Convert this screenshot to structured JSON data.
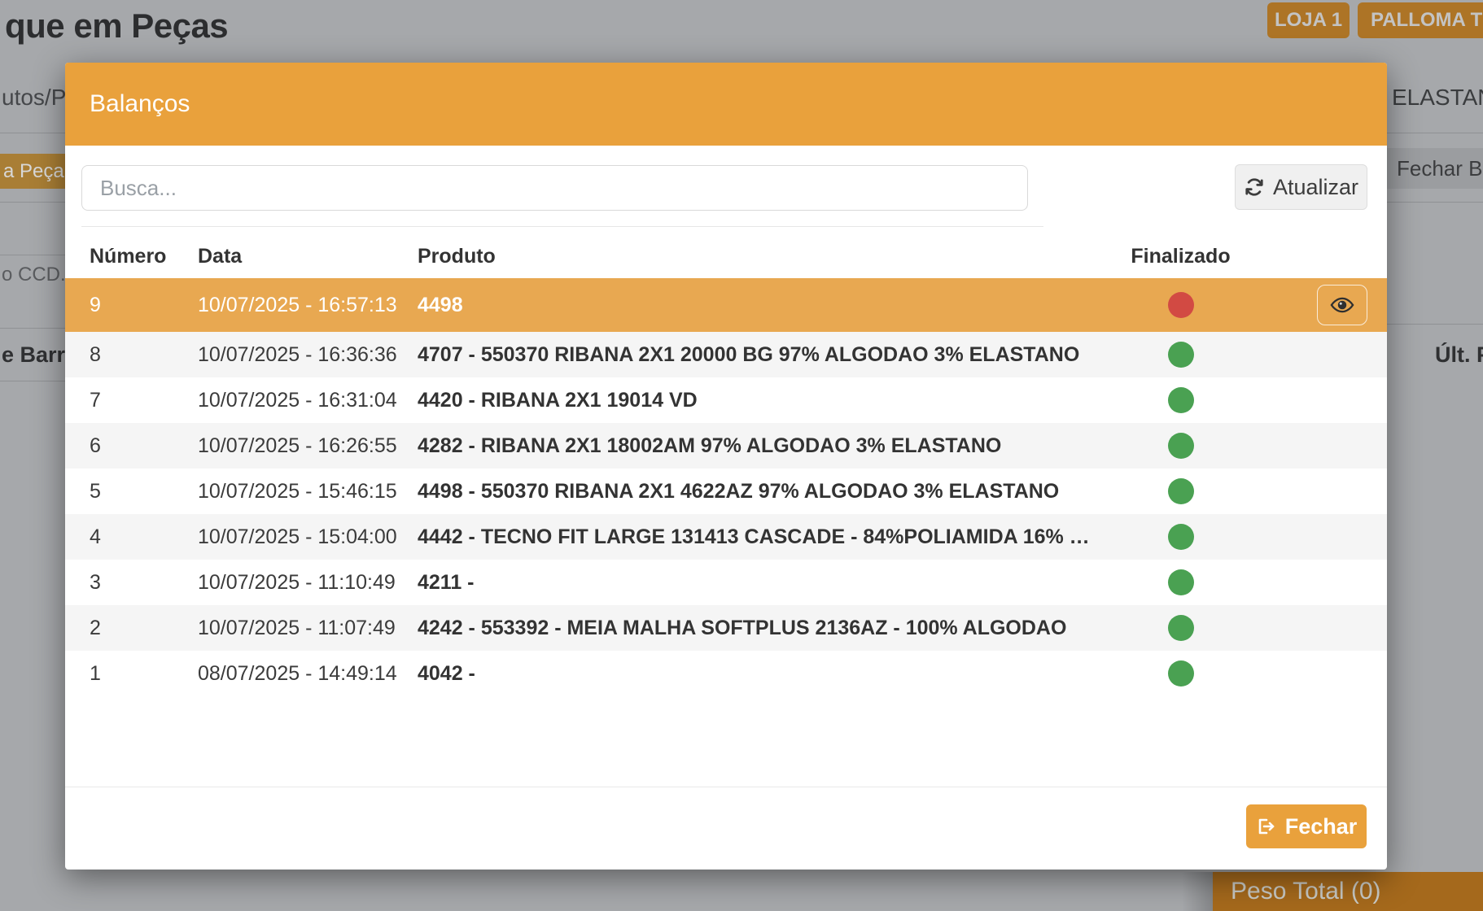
{
  "theme": {
    "backdrop-bg": "#a6a8ab",
    "dim-orange": "#ad7426",
    "dim-orange-dark": "#a5691c",
    "accent": "#e9a13c",
    "row-highlight": "#e8a851",
    "status-green": "#4aa152",
    "status-red": "#d24a43"
  },
  "backdrop": {
    "page_title": "que em Peças",
    "store_buttons": [
      {
        "label": "LOJA 1"
      },
      {
        "label": "PALLOMA TEX"
      }
    ],
    "fragments": {
      "left_top": "utos/Pe",
      "left_tab": "a Peça - F",
      "left_ccd": "o CCD...",
      "left_barcode": "e Barra",
      "right_top": "ELASTAN",
      "right_button": "Fechar Balan",
      "right_ult": "Últ. P"
    },
    "peso_total_label": "Peso Total (0)"
  },
  "modal": {
    "title": "Balanços",
    "search_placeholder": "Busca...",
    "refresh_label": "Atualizar",
    "close_label": "Fechar",
    "columns": {
      "numero": "Número",
      "data": "Data",
      "produto": "Produto",
      "finalizado": "Finalizado"
    },
    "rows": [
      {
        "numero": "9",
        "data": "10/07/2025 - 16:57:13",
        "produto": "4498",
        "finalizado": "red",
        "selected": true,
        "has_action": true
      },
      {
        "numero": "8",
        "data": "10/07/2025 - 16:36:36",
        "produto": "4707 - 550370 RIBANA 2X1 20000 BG 97% ALGODAO 3% ELASTANO",
        "finalizado": "green",
        "selected": false,
        "has_action": false
      },
      {
        "numero": "7",
        "data": "10/07/2025 - 16:31:04",
        "produto": "4420 - RIBANA 2X1 19014 VD",
        "finalizado": "green",
        "selected": false,
        "has_action": false
      },
      {
        "numero": "6",
        "data": "10/07/2025 - 16:26:55",
        "produto": "4282 - RIBANA 2X1 18002AM 97% ALGODAO 3% ELASTANO",
        "finalizado": "green",
        "selected": false,
        "has_action": false
      },
      {
        "numero": "5",
        "data": "10/07/2025 - 15:46:15",
        "produto": "4498 - 550370 RIBANA 2X1 4622AZ 97% ALGODAO 3% ELASTANO",
        "finalizado": "green",
        "selected": false,
        "has_action": false
      },
      {
        "numero": "4",
        "data": "10/07/2025 - 15:04:00",
        "produto": "4442 - TECNO FIT LARGE 131413 CASCADE - 84%POLIAMIDA 16% ELA…",
        "finalizado": "green",
        "selected": false,
        "has_action": false
      },
      {
        "numero": "3",
        "data": "10/07/2025 - 11:10:49",
        "produto": "4211 -",
        "finalizado": "green",
        "selected": false,
        "has_action": false
      },
      {
        "numero": "2",
        "data": "10/07/2025 - 11:07:49",
        "produto": "4242 - 553392 - MEIA MALHA SOFTPLUS 2136AZ - 100% ALGODAO",
        "finalizado": "green",
        "selected": false,
        "has_action": false
      },
      {
        "numero": "1",
        "data": "08/07/2025 - 14:49:14",
        "produto": "4042 -",
        "finalizado": "green",
        "selected": false,
        "has_action": false
      }
    ]
  }
}
